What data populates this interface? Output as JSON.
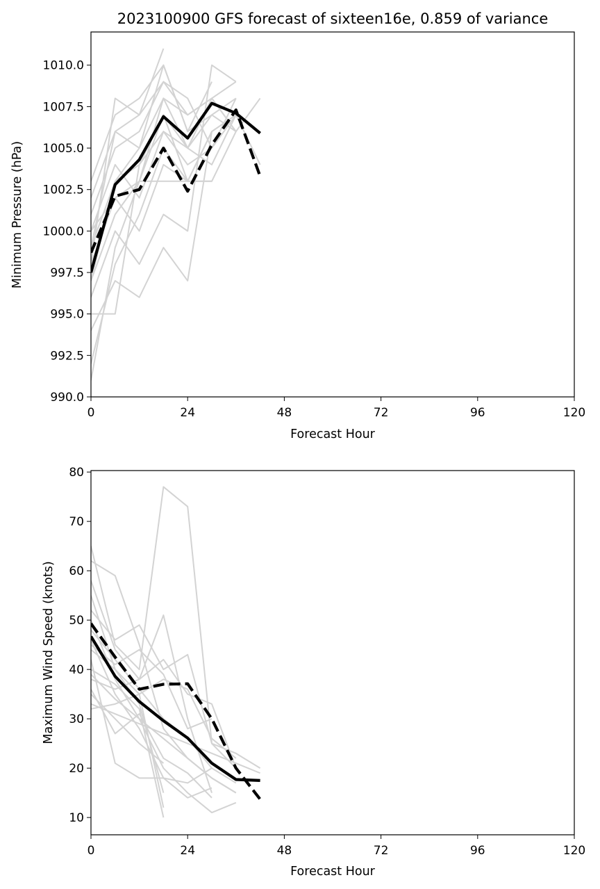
{
  "chart_data": [
    {
      "type": "line",
      "id": "pressure",
      "title": "2023100900 GFS forecast of sixteen16e, 0.859 of variance",
      "xlabel": "Forecast Hour",
      "ylabel": "Minimum Pressure (hPa)",
      "xlim": [
        0,
        120
      ],
      "ylim": [
        990.0,
        1012.0
      ],
      "xticks": [
        0,
        24,
        48,
        72,
        96,
        120
      ],
      "yticks": [
        990.0,
        992.5,
        995.0,
        997.5,
        1000.0,
        1002.5,
        1005.0,
        1007.5,
        1010.0
      ],
      "ytick_labels": [
        "990.0",
        "992.5",
        "995.0",
        "997.5",
        "1000.0",
        "1002.5",
        "1005.0",
        "1007.5",
        "1010.0"
      ],
      "grid": false,
      "colors": {
        "members": "#d3d3d3",
        "mean": "#000000"
      },
      "members_x": [
        0,
        6,
        12,
        18,
        24,
        30,
        36,
        42
      ],
      "members": [
        [
          991,
          999,
          1003,
          1008,
          1005,
          1007,
          1008
        ],
        [
          992,
          998,
          1001,
          1005,
          1003,
          1006,
          1007
        ],
        [
          994,
          997,
          996,
          999,
          997,
          1006
        ],
        [
          995,
          995,
          1004,
          1007,
          1005,
          1008,
          1009
        ],
        [
          996,
          1000,
          998,
          1001,
          1000,
          1010,
          1009
        ],
        [
          997,
          1001,
          1003,
          1007,
          1003,
          1003,
          1006,
          1008
        ],
        [
          998,
          1008,
          1007,
          1011
        ],
        [
          999,
          1003,
          1005,
          1010,
          1006,
          1009
        ],
        [
          1000,
          1004,
          1002,
          1006,
          1005,
          1004,
          1007,
          1004
        ],
        [
          1001,
          1005,
          1006,
          1009,
          1007,
          1008,
          1006
        ],
        [
          1002,
          1006,
          1007,
          1009,
          1008,
          1005,
          1007
        ],
        [
          1003,
          1007,
          1008,
          1010,
          1006,
          1007,
          1006
        ],
        [
          998,
          1002,
          1000,
          1004,
          1003,
          1006,
          1007
        ],
        [
          997,
          1003,
          1004,
          1006,
          1004,
          1005,
          1008
        ],
        [
          999,
          1006,
          1005,
          1008,
          1007,
          1008,
          1006
        ],
        [
          1000,
          1002,
          1003,
          1003,
          1003,
          1003
        ]
      ],
      "series": [
        {
          "style": "solid",
          "x": [
            0,
            6,
            12,
            18,
            24,
            30,
            36,
            42
          ],
          "values": [
            997.5,
            1002.8,
            1004.3,
            1006.9,
            1005.6,
            1007.7,
            1007.1,
            1005.9
          ]
        },
        {
          "style": "dashed",
          "x": [
            0,
            6,
            12,
            18,
            24,
            30,
            36,
            42
          ],
          "values": [
            998.7,
            1002.1,
            1002.5,
            1005.0,
            1002.4,
            1005.2,
            1007.3,
            1003.3
          ]
        }
      ]
    },
    {
      "type": "line",
      "id": "wind",
      "xlabel": "Forecast Hour",
      "ylabel": "Maximum Wind Speed (knots)",
      "xlim": [
        0,
        120
      ],
      "ylim": [
        6.5,
        80.3
      ],
      "xticks": [
        0,
        24,
        48,
        72,
        96,
        120
      ],
      "yticks": [
        10,
        20,
        30,
        40,
        50,
        60,
        70,
        80
      ],
      "ytick_labels": [
        "10",
        "20",
        "30",
        "40",
        "50",
        "60",
        "70",
        "80"
      ],
      "grid": false,
      "colors": {
        "members": "#d3d3d3",
        "mean": "#000000"
      },
      "members_x": [
        0,
        6,
        12,
        18,
        24,
        30,
        36,
        42
      ],
      "members": [
        [
          65,
          45,
          40,
          77,
          73,
          25,
          20
        ],
        [
          62,
          59,
          45,
          28,
          22,
          18,
          15
        ],
        [
          58,
          44,
          38,
          51,
          30,
          15
        ],
        [
          55,
          40,
          35,
          12
        ],
        [
          52,
          46,
          49,
          40,
          43,
          25,
          23,
          20
        ],
        [
          50,
          38,
          30,
          20,
          15,
          11,
          13
        ],
        [
          48,
          42,
          36,
          30,
          26,
          20,
          17
        ],
        [
          46,
          35,
          28,
          18,
          14,
          16
        ],
        [
          45,
          41,
          44,
          39,
          28,
          30
        ],
        [
          42,
          21,
          18,
          18,
          17,
          20
        ],
        [
          40,
          37,
          32,
          10
        ],
        [
          39,
          34,
          30,
          26,
          22,
          18,
          15
        ],
        [
          38,
          36,
          38,
          42,
          35,
          33,
          20
        ],
        [
          36,
          27,
          31,
          22,
          19,
          14
        ],
        [
          35,
          30,
          25,
          21
        ],
        [
          33,
          31,
          29,
          27,
          25,
          23,
          21,
          19
        ],
        [
          32,
          33,
          35,
          38,
          36,
          26,
          22
        ],
        [
          44,
          40,
          33,
          15
        ]
      ],
      "series": [
        {
          "style": "solid",
          "x": [
            0,
            6,
            12,
            18,
            24,
            30,
            36,
            42
          ],
          "values": [
            46.7,
            38.6,
            33.5,
            29.6,
            26.1,
            21.0,
            17.7,
            17.5
          ]
        },
        {
          "style": "dashed",
          "x": [
            0,
            6,
            12,
            18,
            24,
            30,
            36,
            42
          ],
          "values": [
            49.3,
            42.5,
            36.0,
            37.0,
            37.1,
            30.0,
            20.0,
            13.7
          ]
        }
      ]
    }
  ]
}
